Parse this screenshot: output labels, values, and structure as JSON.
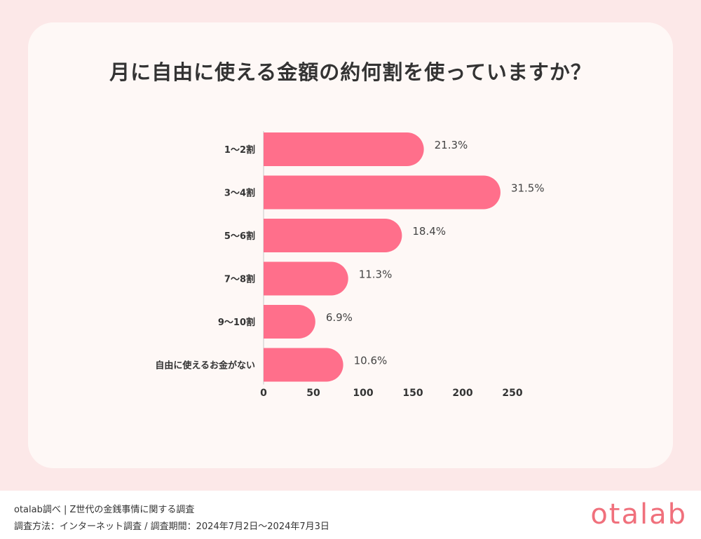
{
  "chart_data": {
    "type": "bar",
    "orientation": "horizontal",
    "title": "月に自由に使える金額の約何割を使っていますか？",
    "categories": [
      "1〜2割",
      "3〜4割",
      "5〜6割",
      "7〜8割",
      "9〜10割",
      "自由に使えるお金がない"
    ],
    "values": [
      161,
      238,
      139,
      85,
      52,
      80
    ],
    "value_labels": [
      "21.3%",
      "31.5%",
      "18.4%",
      "11.3%",
      "6.9%",
      "10.6%"
    ],
    "x_ticks": [
      "0",
      "50",
      "100",
      "150",
      "200",
      "250"
    ],
    "xlim": [
      0,
      250
    ],
    "bar_color": "#ff6f8b",
    "grid": false,
    "legend": "none"
  },
  "footer": {
    "line1": "otalab調べ | Z世代の金銭事情に関する調査",
    "line2": "調査方法：インターネット調査 / 調査期間：2024年7月2日〜2024年7月3日",
    "logo": "otalab"
  },
  "colors": {
    "background": "#fce8e8",
    "card": "#fef8f6",
    "logo": "#f0707c"
  }
}
